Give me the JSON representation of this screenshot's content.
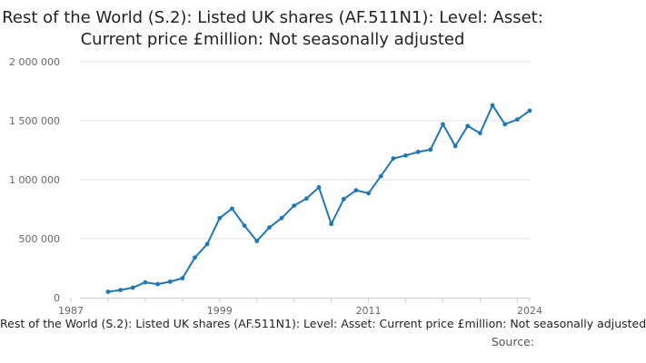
{
  "chart_data": {
    "type": "line",
    "title": "Rest of the World (S.2): Listed UK shares (AF.511N1): Level: Asset: Current price £million: Not seasonally adjusted",
    "xlabel": "",
    "ylabel": "",
    "xlim": [
      1987,
      2024
    ],
    "ylim": [
      0,
      2000000
    ],
    "xticks": [
      1987,
      1999,
      2011,
      2024
    ],
    "xtick_labels": [
      "1987",
      "1999",
      "2011",
      "2024"
    ],
    "yticks": [
      0,
      500000,
      1000000,
      1500000,
      2000000
    ],
    "ytick_labels": [
      "0",
      "500 000",
      "1 000 000",
      "1 500 000",
      "2 000 000"
    ],
    "grid": true,
    "legend_position": "bottom",
    "series": [
      {
        "name": "Rest of the World (S.2): Listed UK shares (AF.511N1): Level: Asset: Current price £million: Not seasonally adjusted",
        "color": "#1f78b4",
        "x": [
          1990,
          1991,
          1992,
          1993,
          1994,
          1995,
          1996,
          1997,
          1998,
          1999,
          2000,
          2001,
          2002,
          2003,
          2004,
          2005,
          2006,
          2007,
          2008,
          2009,
          2010,
          2011,
          2012,
          2013,
          2014,
          2015,
          2016,
          2017,
          2018,
          2019,
          2020,
          2021,
          2022,
          2023,
          2024
        ],
        "values": [
          50000,
          65000,
          85000,
          130000,
          115000,
          135000,
          165000,
          340000,
          455000,
          675000,
          755000,
          610000,
          480000,
          595000,
          675000,
          780000,
          840000,
          935000,
          625000,
          835000,
          910000,
          885000,
          1030000,
          1180000,
          1205000,
          1235000,
          1255000,
          1470000,
          1285000,
          1455000,
          1395000,
          1630000,
          1470000,
          1510000,
          1585000
        ]
      }
    ]
  },
  "source_label": "Source:"
}
